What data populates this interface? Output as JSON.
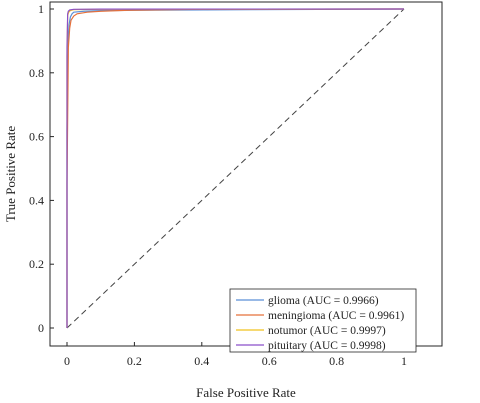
{
  "chart_data": {
    "type": "line",
    "title": "",
    "xlabel": "False Positive Rate",
    "ylabel": "True Positive Rate",
    "xlim": [
      0,
      1
    ],
    "ylim": [
      0,
      1
    ],
    "x_ticks": [
      "0",
      "0.2",
      "0.4",
      "0.6",
      "0.8",
      "1"
    ],
    "y_ticks": [
      "0",
      "0.2",
      "0.4",
      "0.6",
      "0.8",
      "1"
    ],
    "grid": false,
    "legend_position": "bottom-right",
    "reference_line": {
      "x": [
        0,
        1
      ],
      "y": [
        0,
        1
      ],
      "style": "dashed",
      "color": "#444444"
    },
    "series": [
      {
        "name": "glioma (AUC = 0.9966)",
        "color": "#5b8fd6",
        "x": [
          0,
          0,
          0.003,
          0.006,
          0.01,
          0.015,
          0.02,
          0.05,
          0.1,
          0.2,
          0.55,
          1
        ],
        "y": [
          0,
          0.62,
          0.9,
          0.95,
          0.975,
          0.985,
          0.99,
          0.993,
          0.995,
          0.996,
          0.998,
          1
        ]
      },
      {
        "name": "meningioma (AUC = 0.9961)",
        "color": "#e5703b",
        "x": [
          0,
          0,
          0.004,
          0.008,
          0.012,
          0.02,
          0.03,
          0.06,
          0.1,
          0.18,
          0.4,
          1
        ],
        "y": [
          0,
          0.45,
          0.88,
          0.94,
          0.965,
          0.978,
          0.985,
          0.99,
          0.993,
          0.996,
          0.999,
          1
        ]
      },
      {
        "name": "notumor (AUC = 0.9997)",
        "color": "#f0c21e",
        "x": [
          0,
          0,
          0.002,
          0.005,
          0.01,
          0.02,
          0.1,
          1
        ],
        "y": [
          0,
          0.85,
          0.98,
          0.99,
          0.995,
          0.998,
          0.999,
          1
        ]
      },
      {
        "name": "pituitary (AUC = 0.9998)",
        "color": "#8a4fc9",
        "x": [
          0,
          0,
          0.002,
          0.004,
          0.008,
          0.02,
          0.1,
          1
        ],
        "y": [
          0,
          0.88,
          0.985,
          0.993,
          0.997,
          0.999,
          0.9995,
          1
        ]
      }
    ]
  }
}
